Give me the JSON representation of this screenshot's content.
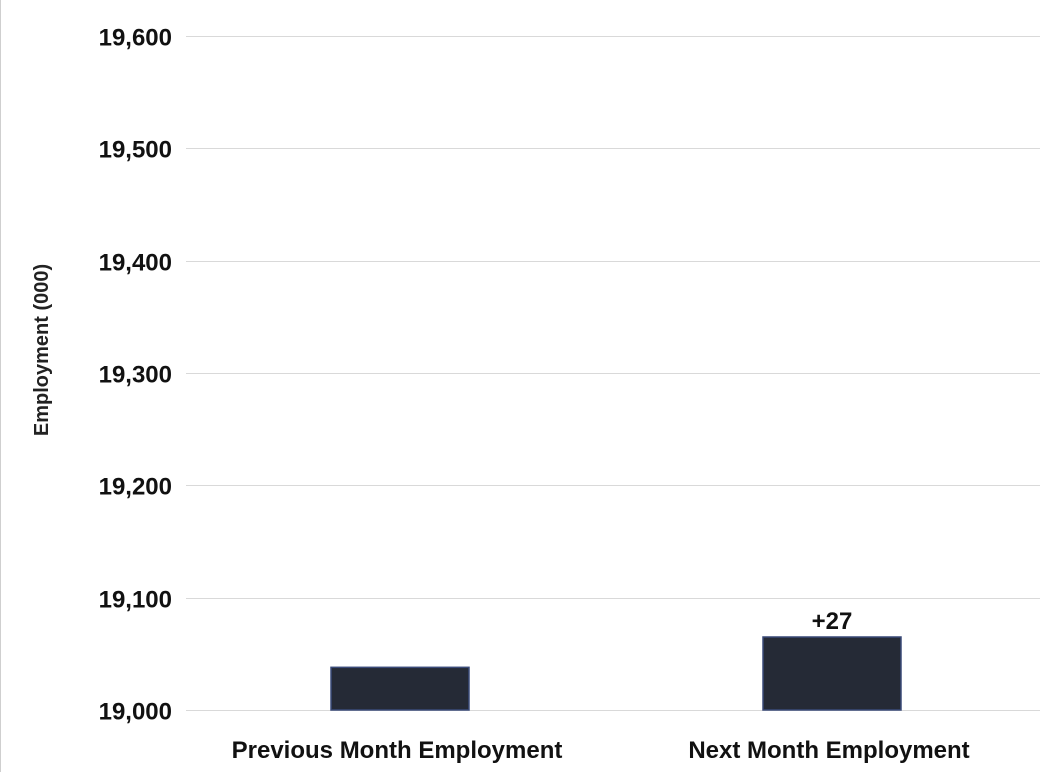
{
  "chart_data": {
    "type": "bar",
    "title": "",
    "xlabel": "",
    "ylabel": "Employment (000)",
    "ylim": [
      19000,
      19600
    ],
    "yticks": [
      19000,
      19100,
      19200,
      19300,
      19400,
      19500,
      19600
    ],
    "ytick_labels": [
      "19,000",
      "19,100",
      "19,200",
      "19,300",
      "19,400",
      "19,500",
      "19,600"
    ],
    "categories": [
      "Previous Month Employment",
      "Next Month Employment"
    ],
    "values": [
      19038,
      19065
    ],
    "data_labels": [
      "",
      "+27"
    ],
    "grid": "horizontal",
    "legend": "none",
    "colors": {
      "bar": "#252a36",
      "bar_edge": "#3a4a78",
      "grid": "#d9d9d9",
      "text": "#111111"
    }
  }
}
